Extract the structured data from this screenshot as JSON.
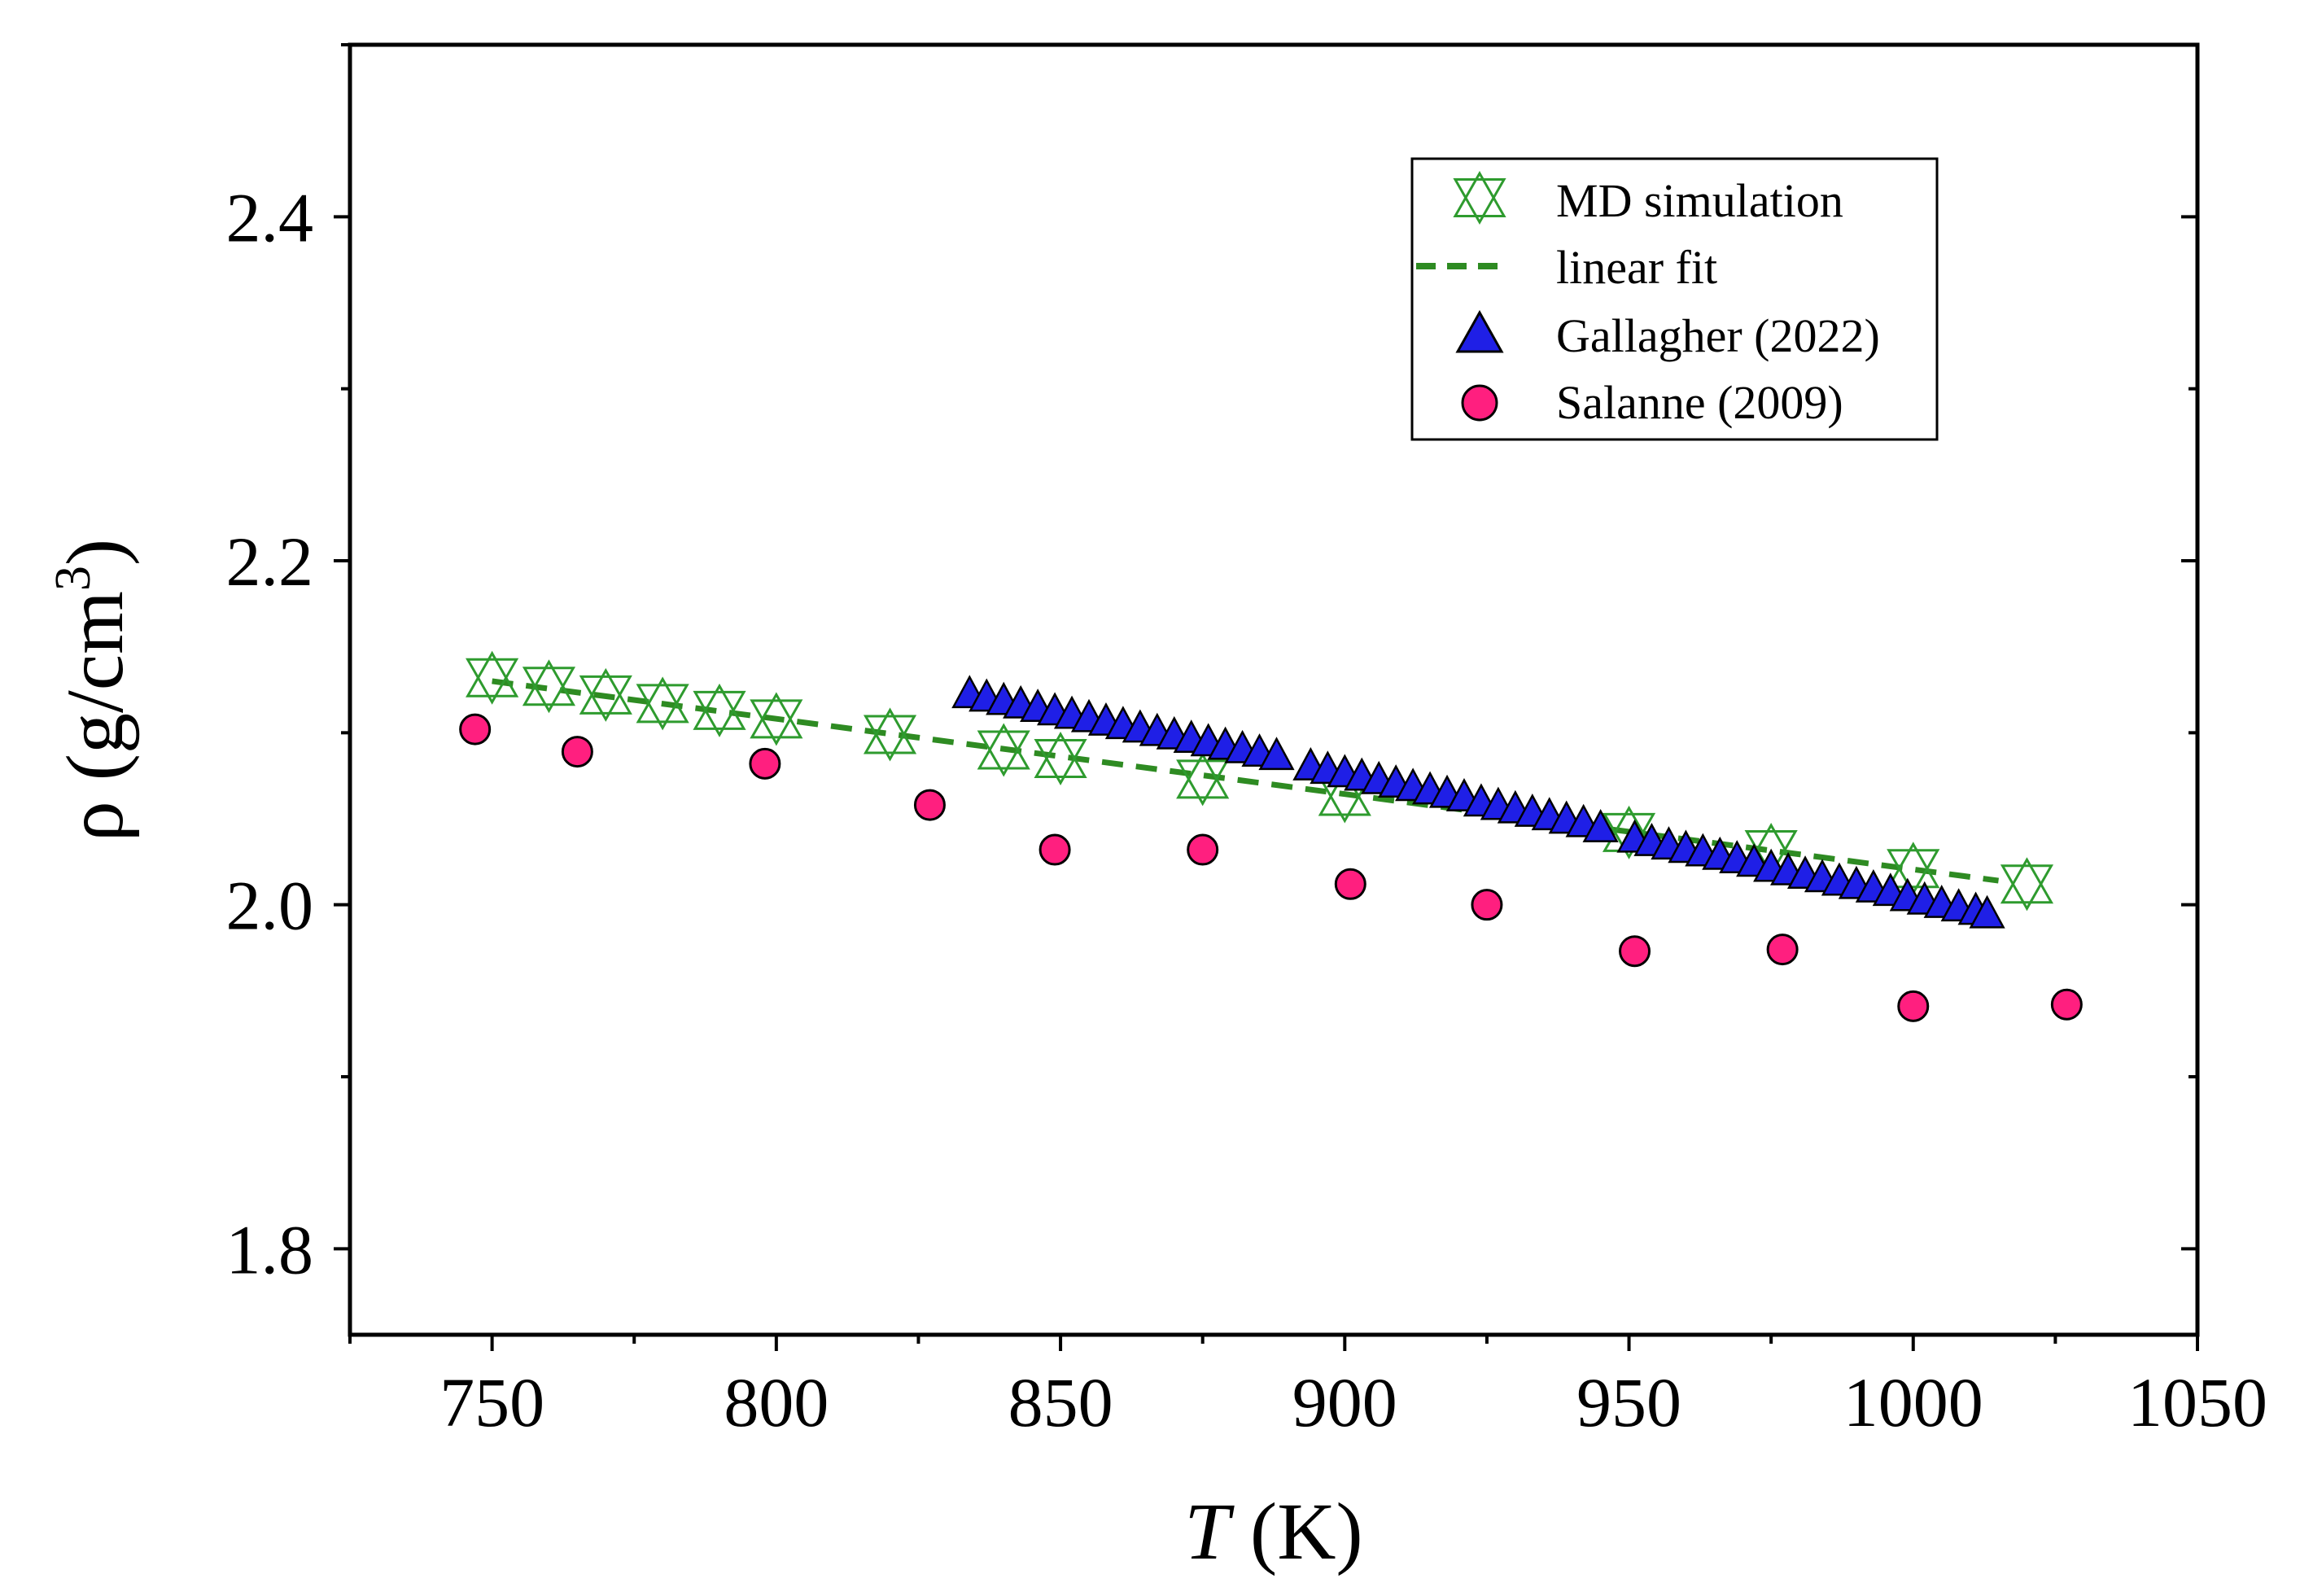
{
  "chart_data": {
    "type": "scatter",
    "title": "",
    "xlabel": {
      "var": "T",
      "unit": " (K)"
    },
    "ylabel": {
      "prefix": "ρ (g/cm",
      "sup": "3",
      "suffix": ")"
    },
    "xlim": [
      725,
      1050
    ],
    "ylim": [
      1.75,
      2.5
    ],
    "xticks": [
      750,
      800,
      850,
      900,
      950,
      1000,
      1050
    ],
    "xtick_labels": [
      "750",
      "800",
      "850",
      "900",
      "950",
      "1000",
      "1050"
    ],
    "yticks": [
      1.8,
      2.0,
      2.2,
      2.4
    ],
    "ytick_labels": [
      "1.8",
      "2.0",
      "2.2",
      "2.4"
    ],
    "legend_placement": "top-right",
    "grid": false,
    "series": [
      {
        "name": "MD simulation",
        "marker": "crossed-triangles",
        "color": "#2e9b2e",
        "x": [
          750,
          760,
          770,
          780,
          790,
          800,
          820,
          840,
          850,
          875,
          900,
          950,
          975,
          1000,
          1020
        ],
        "y": [
          2.132,
          2.127,
          2.122,
          2.117,
          2.113,
          2.108,
          2.099,
          2.09,
          2.085,
          2.073,
          2.063,
          2.042,
          2.032,
          2.021,
          2.012
        ]
      },
      {
        "name": "linear fit",
        "marker": "dashed-line",
        "color": "#2e8b22",
        "x": [
          750,
          1015
        ],
        "y": [
          2.13,
          2.014
        ]
      },
      {
        "name": "Gallagher (2022)",
        "marker": "triangle",
        "color": "#1f1fe6",
        "x": [
          834,
          837,
          840,
          843,
          846,
          849,
          852,
          855,
          858,
          861,
          864,
          867,
          870,
          873,
          876,
          879,
          882,
          885,
          888,
          894,
          897,
          900,
          903,
          906,
          909,
          912,
          915,
          918,
          921,
          924,
          927,
          930,
          933,
          936,
          939,
          942,
          945,
          951,
          954,
          957,
          960,
          963,
          966,
          969,
          972,
          975,
          978,
          981,
          984,
          987,
          990,
          993,
          996,
          999,
          1002,
          1005,
          1008,
          1011,
          1013
        ],
        "y": [
          2.122,
          2.12,
          2.118,
          2.116,
          2.114,
          2.112,
          2.11,
          2.108,
          2.106,
          2.104,
          2.102,
          2.1,
          2.098,
          2.096,
          2.094,
          2.092,
          2.09,
          2.088,
          2.086,
          2.08,
          2.078,
          2.076,
          2.074,
          2.072,
          2.07,
          2.068,
          2.066,
          2.064,
          2.062,
          2.059,
          2.057,
          2.055,
          2.053,
          2.051,
          2.049,
          2.047,
          2.044,
          2.038,
          2.036,
          2.034,
          2.032,
          2.03,
          2.028,
          2.026,
          2.024,
          2.021,
          2.019,
          2.017,
          2.015,
          2.013,
          2.011,
          2.009,
          2.007,
          2.004,
          2.002,
          2.0,
          1.998,
          1.996,
          1.994
        ]
      },
      {
        "name": "Salanne (2009)",
        "marker": "circle",
        "color": "#ff1f7f",
        "x": [
          747,
          765,
          798,
          827,
          849,
          875,
          901,
          925,
          951,
          977,
          1000,
          1027
        ],
        "y": [
          2.102,
          2.089,
          2.082,
          2.058,
          2.032,
          2.032,
          2.012,
          2.0,
          1.973,
          1.974,
          1.941,
          1.942
        ]
      }
    ]
  }
}
